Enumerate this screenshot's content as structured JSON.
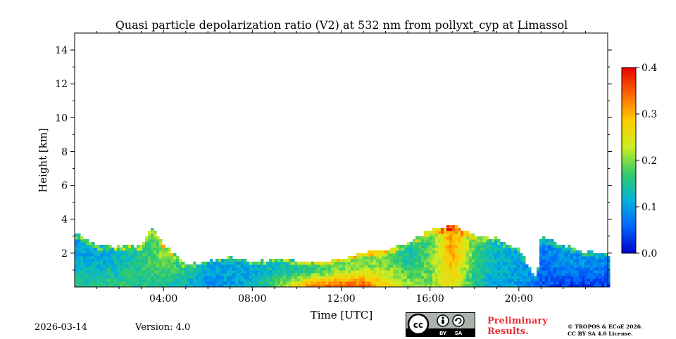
{
  "chart_data": {
    "type": "heatmap",
    "title": "Quasi particle depolarization ratio (V2) at 532 nm from pollyxt_cyp at Limassol",
    "xlabel": "Time [UTC]",
    "ylabel": "Height [km]",
    "xlim_hours": [
      0,
      24
    ],
    "ylim_km": [
      0,
      15
    ],
    "x_ticks": [
      {
        "hour": 4,
        "label": "04:00"
      },
      {
        "hour": 8,
        "label": "08:00"
      },
      {
        "hour": 12,
        "label": "12:00"
      },
      {
        "hour": 16,
        "label": "16:00"
      },
      {
        "hour": 20,
        "label": "20:00"
      }
    ],
    "y_ticks": [
      {
        "km": 2,
        "label": "2"
      },
      {
        "km": 4,
        "label": "4"
      },
      {
        "km": 6,
        "label": "6"
      },
      {
        "km": 8,
        "label": "8"
      },
      {
        "km": 10,
        "label": "10"
      },
      {
        "km": 12,
        "label": "12"
      },
      {
        "km": 14,
        "label": "14"
      }
    ],
    "colorbar": {
      "range": [
        0.0,
        0.4
      ],
      "ticks": [
        {
          "value": 0.0,
          "label": "0.0"
        },
        {
          "value": 0.1,
          "label": "0.1"
        },
        {
          "value": 0.2,
          "label": "0.2"
        },
        {
          "value": 0.3,
          "label": "0.3"
        },
        {
          "value": 0.4,
          "label": "0.4"
        }
      ],
      "colormap": [
        "#0000cc",
        "#0066ff",
        "#00b3d9",
        "#33cc66",
        "#ccee22",
        "#ffcc00",
        "#ff6600",
        "#e60000"
      ]
    },
    "layer_top_km": [
      [
        0.0,
        3.2
      ],
      [
        0.5,
        2.8
      ],
      [
        1.0,
        2.4
      ],
      [
        2.0,
        2.3
      ],
      [
        3.0,
        2.4
      ],
      [
        3.5,
        3.5
      ],
      [
        4.0,
        2.5
      ],
      [
        5.0,
        1.2
      ],
      [
        6.0,
        1.5
      ],
      [
        7.0,
        1.7
      ],
      [
        8.0,
        1.4
      ],
      [
        9.0,
        1.6
      ],
      [
        10.0,
        1.5
      ],
      [
        11.0,
        1.4
      ],
      [
        12.0,
        1.6
      ],
      [
        13.0,
        1.9
      ],
      [
        14.0,
        2.1
      ],
      [
        15.0,
        2.5
      ],
      [
        16.0,
        3.3
      ],
      [
        17.0,
        3.6
      ],
      [
        18.0,
        3.0
      ],
      [
        19.0,
        2.8
      ],
      [
        20.0,
        2.2
      ],
      [
        20.8,
        0.3
      ],
      [
        21.0,
        2.9
      ],
      [
        22.0,
        2.4
      ],
      [
        23.0,
        2.0
      ],
      [
        24.0,
        1.8
      ]
    ],
    "near_surface_depol": [
      [
        0.0,
        0.15
      ],
      [
        2.0,
        0.17
      ],
      [
        4.0,
        0.14
      ],
      [
        6.0,
        0.08
      ],
      [
        8.0,
        0.12
      ],
      [
        9.5,
        0.22
      ],
      [
        10.5,
        0.33
      ],
      [
        12.0,
        0.37
      ],
      [
        13.0,
        0.36
      ],
      [
        14.0,
        0.28
      ],
      [
        15.0,
        0.22
      ],
      [
        16.0,
        0.2
      ],
      [
        17.0,
        0.26
      ],
      [
        18.0,
        0.14
      ],
      [
        19.0,
        0.1
      ],
      [
        20.0,
        0.1
      ],
      [
        21.0,
        0.05
      ],
      [
        22.0,
        0.03
      ],
      [
        24.0,
        0.03
      ]
    ],
    "upper_layer_depol": [
      [
        0.0,
        0.1
      ],
      [
        2.0,
        0.12
      ],
      [
        4.0,
        0.2
      ],
      [
        6.0,
        0.1
      ],
      [
        8.0,
        0.11
      ],
      [
        10.0,
        0.15
      ],
      [
        12.0,
        0.2
      ],
      [
        14.0,
        0.2
      ],
      [
        15.0,
        0.14
      ],
      [
        16.0,
        0.18
      ],
      [
        17.0,
        0.32
      ],
      [
        18.0,
        0.18
      ],
      [
        19.0,
        0.12
      ],
      [
        20.0,
        0.1
      ],
      [
        21.0,
        0.07
      ],
      [
        22.0,
        0.09
      ],
      [
        24.0,
        0.08
      ]
    ]
  },
  "footer": {
    "date": "2026-03-14",
    "version": "Version: 4.0",
    "license_badge": {
      "icon_names": [
        "cc-icon",
        "by-icon",
        "sa-icon"
      ],
      "labels": [
        "BY",
        "SA"
      ]
    },
    "preliminary_line1": "Preliminary",
    "preliminary_line2": "Results.",
    "copyright_line1": "© TROPOS & ECoE 2026.",
    "copyright_line2": "CC BY SA 4.0 License."
  }
}
